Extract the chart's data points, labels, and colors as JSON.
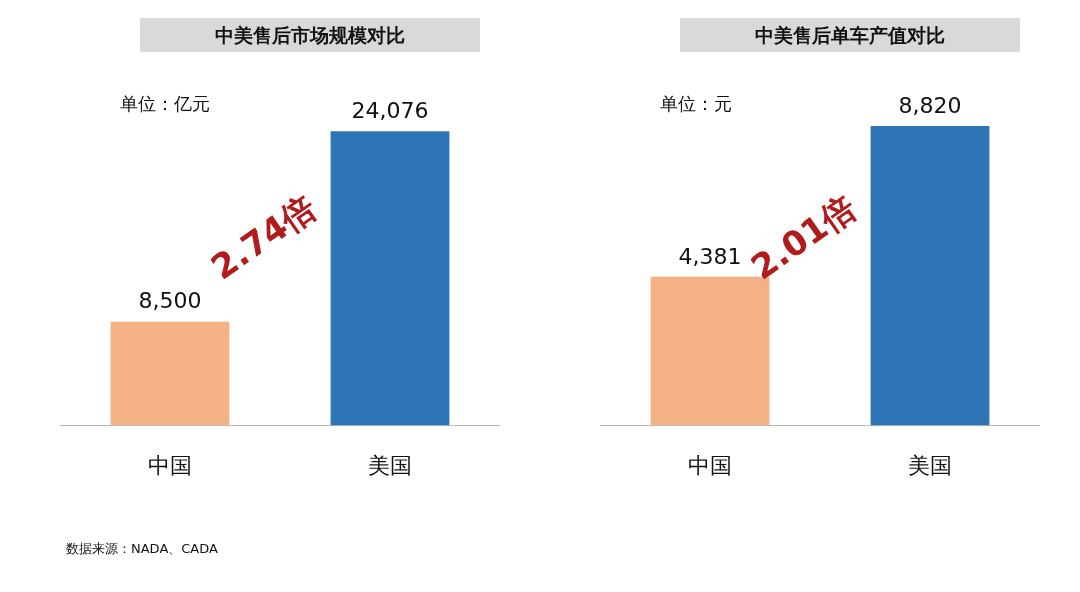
{
  "chart_data": [
    {
      "type": "bar",
      "title": "中美售后市场规模对比",
      "categories": [
        "中国",
        "美国"
      ],
      "values": [
        8500,
        24076
      ],
      "value_labels": [
        "8,500",
        "24,076"
      ],
      "colors": [
        "#f4b183",
        "#2e75b6"
      ],
      "legend": false,
      "grid": false,
      "annotations": [
        "单位：亿元",
        "2.74倍",
        "数据来源：NADA、CADA"
      ]
    },
    {
      "type": "bar",
      "title": "中美售后单车产值对比",
      "categories": [
        "中国",
        "美国"
      ],
      "values": [
        4381,
        8820
      ],
      "value_labels": [
        "4,381",
        "8,820"
      ],
      "colors": [
        "#f4b183",
        "#2e75b6"
      ],
      "legend": false,
      "grid": false,
      "annotations": [
        "单位：元",
        "2.01倍"
      ]
    }
  ]
}
